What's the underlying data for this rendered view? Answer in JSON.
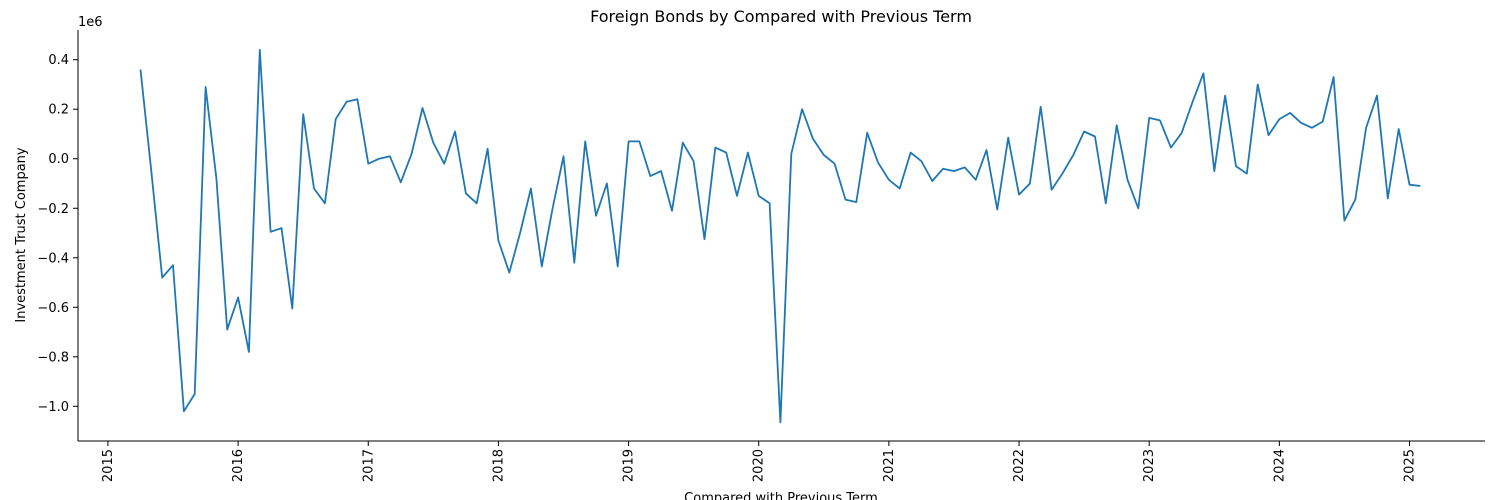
{
  "chart_data": {
    "type": "line",
    "title": "Foreign Bonds by Compared with Previous Term",
    "xlabel": "Compared with Previous Term",
    "ylabel": "Investment Trust Company",
    "y_offset_label": "1e6",
    "xlim": [
      2014.77,
      2025.58
    ],
    "ylim": [
      -1.14,
      0.52
    ],
    "x_ticks": [
      2015,
      2016,
      2017,
      2018,
      2019,
      2020,
      2021,
      2022,
      2023,
      2024,
      2025
    ],
    "x_tick_labels": [
      "2015",
      "2016",
      "2017",
      "2018",
      "2019",
      "2020",
      "2021",
      "2022",
      "2023",
      "2024",
      "2025"
    ],
    "y_ticks": [
      -1.0,
      -0.8,
      -0.6,
      -0.4,
      -0.2,
      0.0,
      0.2,
      0.4
    ],
    "y_tick_labels": [
      "−1.0",
      "−0.8",
      "−0.6",
      "−0.4",
      "−0.2",
      "0.0",
      "0.2",
      "0.4"
    ],
    "grid": false,
    "line_color": "#1f77b4",
    "series": [
      {
        "start": "2015-04",
        "frequency": "monthly",
        "values": [
          0.36,
          -0.05,
          -0.48,
          -0.43,
          -1.02,
          -0.95,
          0.29,
          -0.08,
          -0.69,
          -0.56,
          -0.78,
          0.44,
          -0.295,
          -0.28,
          -0.605,
          0.18,
          -0.12,
          -0.18,
          0.16,
          0.23,
          0.24,
          -0.02,
          0.0,
          0.01,
          -0.095,
          0.02,
          0.205,
          0.065,
          -0.02,
          0.11,
          -0.14,
          -0.18,
          0.04,
          -0.33,
          -0.46,
          -0.3,
          -0.12,
          -0.435,
          -0.2,
          0.01,
          -0.42,
          0.07,
          -0.23,
          -0.1,
          -0.435,
          0.07,
          0.07,
          -0.07,
          -0.05,
          -0.21,
          0.065,
          -0.01,
          -0.325,
          0.045,
          0.025,
          -0.15,
          0.025,
          -0.15,
          -0.18,
          -1.065,
          0.02,
          0.2,
          0.08,
          0.015,
          -0.02,
          -0.165,
          -0.175,
          0.105,
          -0.015,
          -0.085,
          -0.12,
          0.025,
          -0.01,
          -0.09,
          -0.04,
          -0.05,
          -0.035,
          -0.085,
          0.035,
          -0.205,
          0.085,
          -0.145,
          -0.1,
          0.21,
          -0.125,
          -0.06,
          0.015,
          0.11,
          0.09,
          -0.18,
          0.135,
          -0.085,
          -0.2,
          0.165,
          0.155,
          0.045,
          0.105,
          0.23,
          0.345,
          -0.05,
          0.255,
          -0.03,
          -0.06,
          0.3,
          0.095,
          0.16,
          0.185,
          0.145,
          0.125,
          0.15,
          0.33,
          -0.25,
          -0.165,
          0.125,
          0.255,
          -0.16,
          0.12,
          -0.105,
          -0.11
        ]
      }
    ]
  }
}
